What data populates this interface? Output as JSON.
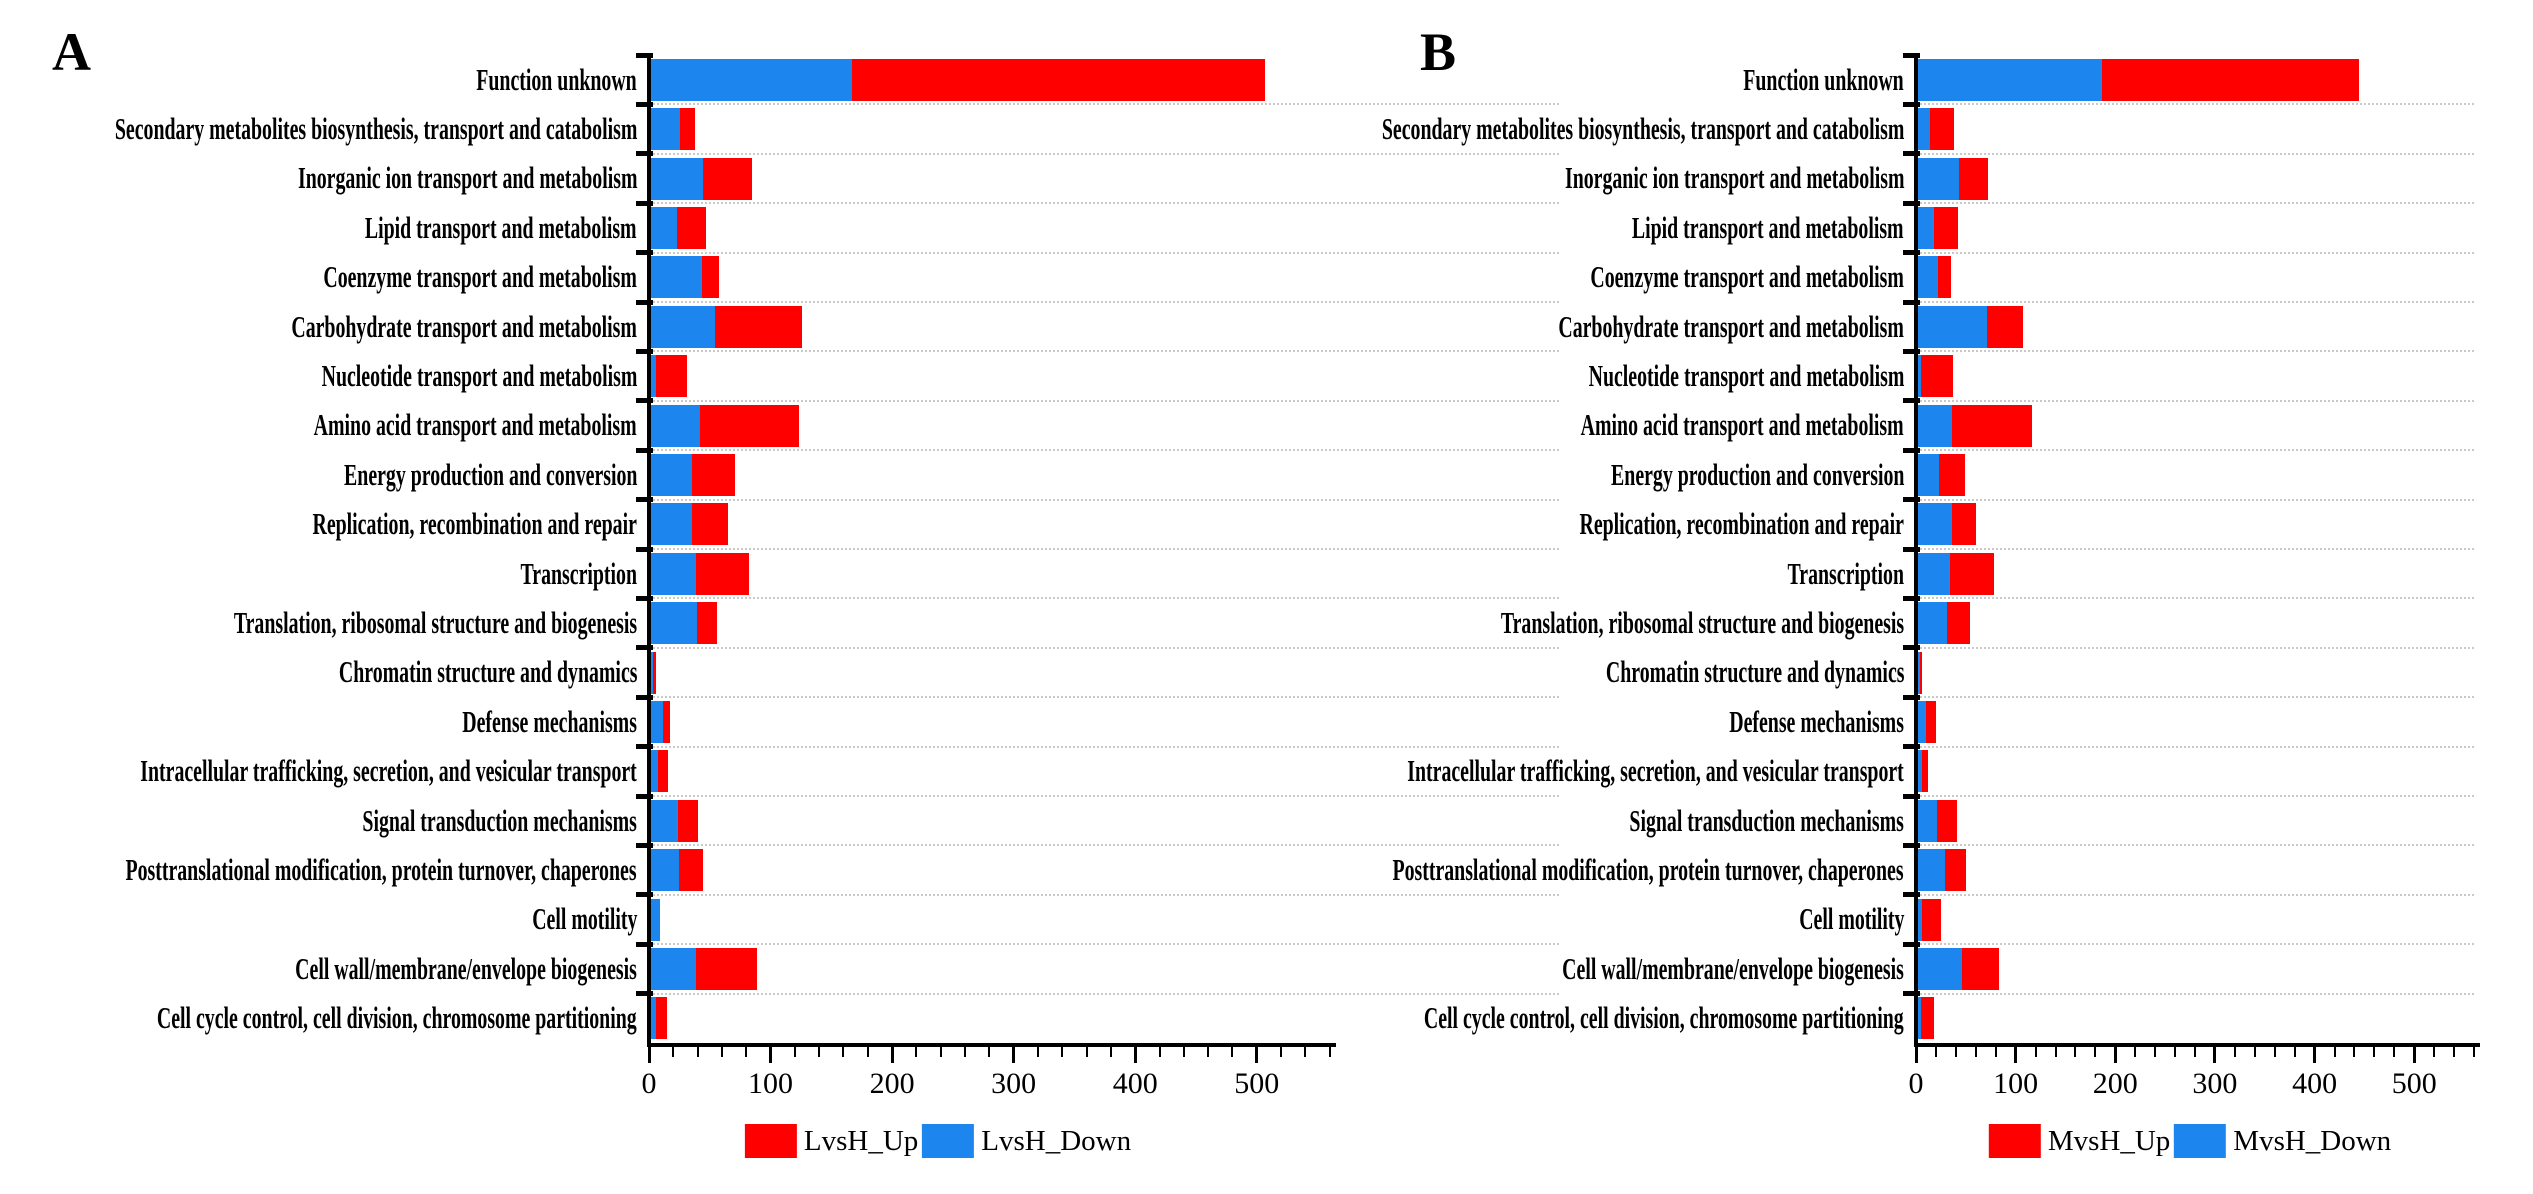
{
  "figure_title": "",
  "chart_data": [
    {
      "type": "bar",
      "orientation": "horizontal",
      "stacked": true,
      "panel_label": "A",
      "title": "",
      "xlabel": "",
      "ylabel": "",
      "xlim": [
        0,
        560
      ],
      "x_major_ticks": [
        0,
        100,
        200,
        300,
        400,
        500
      ],
      "x_minor_step": 20,
      "grid": "dotted-horizontal",
      "legend_position": "bottom-center",
      "categories": [
        "Function unknown",
        "Secondary metabolites biosynthesis, transport and catabolism",
        "Inorganic ion transport and metabolism",
        "Lipid transport and metabolism",
        "Coenzyme transport and metabolism",
        "Carbohydrate transport and metabolism",
        "Nucleotide transport and metabolism",
        "Amino acid transport and metabolism",
        "Energy production and conversion",
        "Replication, recombination and repair",
        "Transcription",
        "Translation, ribosomal structure and biogenesis",
        "Chromatin structure and dynamics",
        "Defense mechanisms",
        "Intracellular trafficking, secretion, and vesicular transport",
        "Signal transduction mechanisms",
        "Posttranslational modification, protein turnover, chaperones",
        "Cell motility",
        "Cell wall/membrane/envelope biogenesis",
        "Cell cycle control, cell division, chromosome partitioning"
      ],
      "series": [
        {
          "name": "LvsH_Down",
          "color": "#1c86ee",
          "values": [
            165,
            24,
            43,
            21,
            42,
            53,
            4,
            40,
            34,
            34,
            37,
            38,
            2,
            10,
            6,
            22,
            23,
            7,
            37,
            4
          ]
        },
        {
          "name": "LvsH_Up",
          "color": "#fe0000",
          "values": [
            340,
            12,
            40,
            24,
            14,
            71,
            26,
            82,
            35,
            29,
            44,
            16,
            2,
            6,
            8,
            17,
            20,
            0,
            50,
            9
          ]
        }
      ],
      "legend": [
        {
          "label": "LvsH_Up",
          "color": "#fe0000"
        },
        {
          "label": "LvsH_Down",
          "color": "#1c86ee"
        }
      ]
    },
    {
      "type": "bar",
      "orientation": "horizontal",
      "stacked": true,
      "panel_label": "B",
      "title": "",
      "xlabel": "",
      "ylabel": "",
      "xlim": [
        0,
        560
      ],
      "x_major_ticks": [
        0,
        100,
        200,
        300,
        400,
        500
      ],
      "x_minor_step": 20,
      "grid": "dotted-horizontal",
      "legend_position": "bottom-center",
      "categories": [
        "Function unknown",
        "Secondary metabolites biosynthesis, transport and catabolism",
        "Inorganic ion transport and metabolism",
        "Lipid transport and metabolism",
        "Coenzyme transport and metabolism",
        "Carbohydrate transport and metabolism",
        "Nucleotide transport and metabolism",
        "Amino acid transport and metabolism",
        "Energy production and conversion",
        "Replication, recombination and repair",
        "Transcription",
        "Translation, ribosomal structure and biogenesis",
        "Chromatin structure and dynamics",
        "Defense mechanisms",
        "Intracellular trafficking, secretion, and vesicular transport",
        "Signal transduction mechanisms",
        "Posttranslational modification, protein turnover, chaperones",
        "Cell motility",
        "Cell wall/membrane/envelope biogenesis",
        "Cell cycle control, cell division, chromosome partitioning"
      ],
      "series": [
        {
          "name": "MvsH_Down",
          "color": "#1c86ee",
          "values": [
            185,
            12,
            41,
            16,
            20,
            69,
            3,
            34,
            21,
            34,
            32,
            29,
            2,
            8,
            4,
            19,
            27,
            4,
            44,
            3
          ]
        },
        {
          "name": "MvsH_Up",
          "color": "#fe0000",
          "values": [
            258,
            24,
            29,
            24,
            13,
            36,
            32,
            80,
            26,
            24,
            44,
            23,
            2,
            10,
            6,
            20,
            21,
            19,
            37,
            13
          ]
        }
      ],
      "legend": [
        {
          "label": "MvsH_Up",
          "color": "#fe0000"
        },
        {
          "label": "MvsH_Down",
          "color": "#1c86ee"
        }
      ]
    }
  ]
}
